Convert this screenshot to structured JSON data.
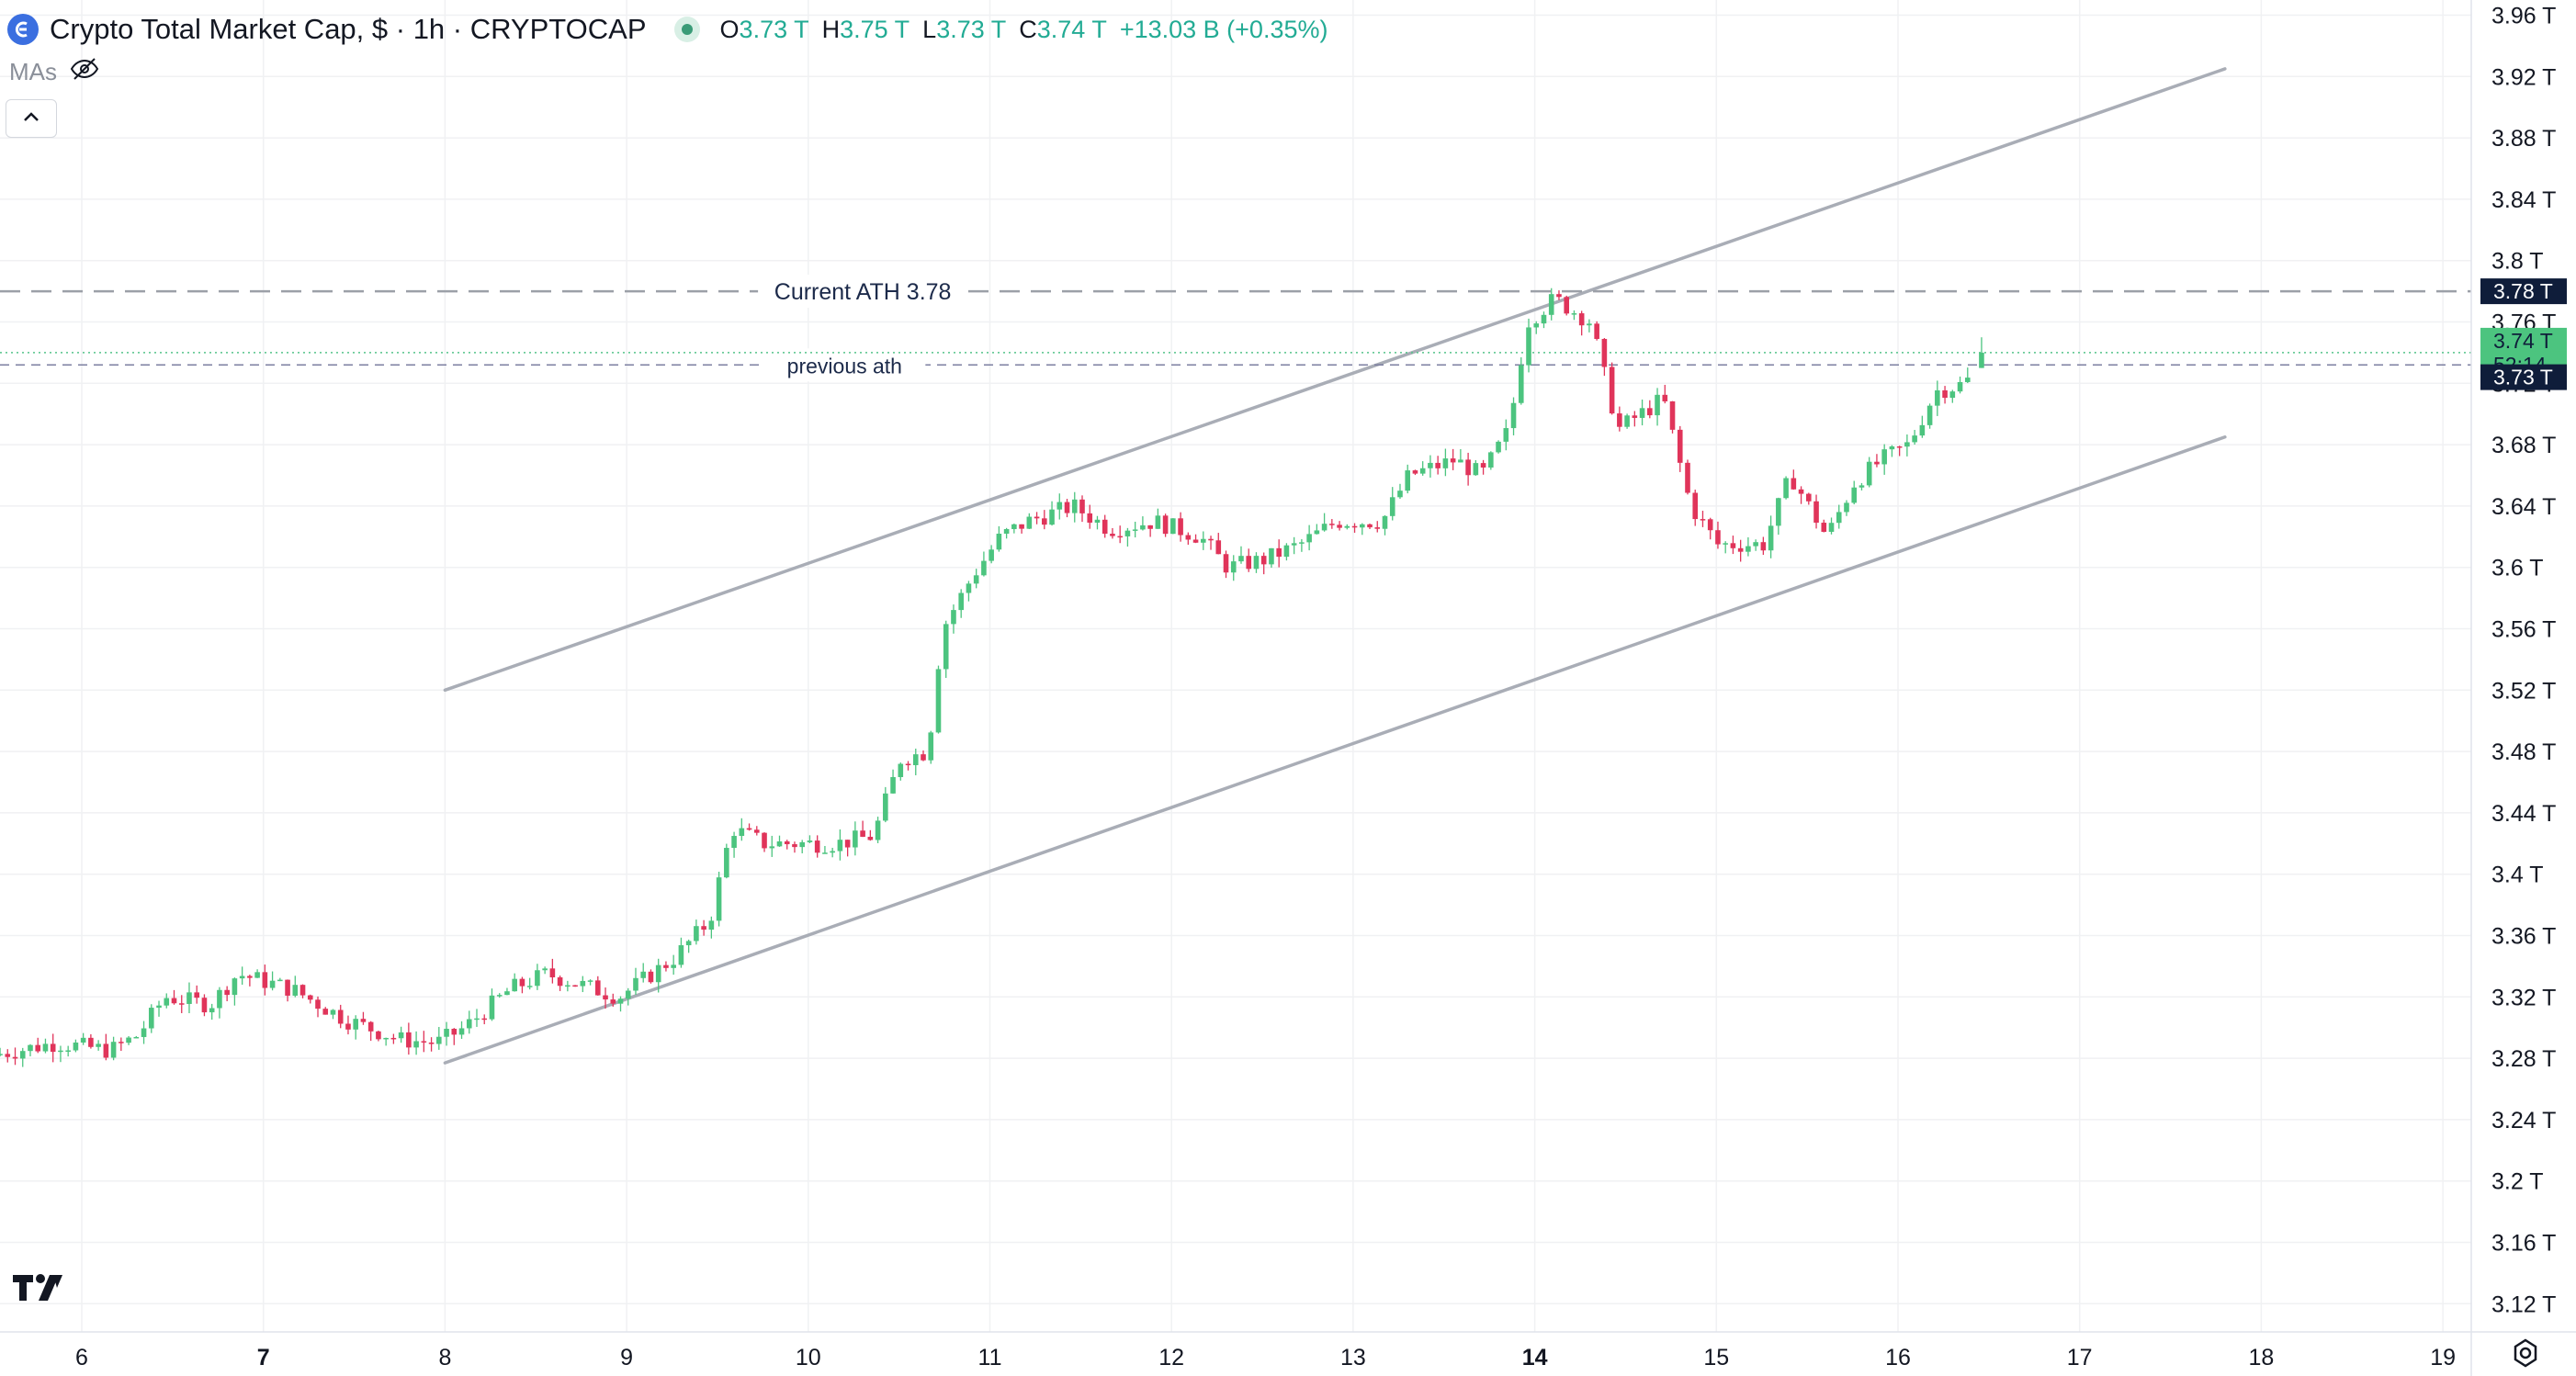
{
  "header": {
    "title": "Crypto Total Market Cap, $ · 1h · CRYPTOCAP",
    "ohlc": [
      {
        "key": "O",
        "value": "3.73 T"
      },
      {
        "key": "H",
        "value": "3.75 T"
      },
      {
        "key": "L",
        "value": "3.73 T"
      },
      {
        "key": "C",
        "value": "3.74 T"
      }
    ],
    "change": "+13.03 B (+0.35%)"
  },
  "indicators": {
    "mas_label": "MAs"
  },
  "icons": {
    "logo": "crypto-logo-icon",
    "live": "market-open-dot-icon",
    "hide": "eye-off-icon",
    "collapse": "chevron-up-icon",
    "brand": "tradingview-logo-icon",
    "settings": "gear-icon"
  },
  "colors": {
    "up": "#26a69a",
    "up_candle": "#4cc47f",
    "down": "#e0345a",
    "channel": "#a9adb6",
    "ath_line": "#9ca0a8",
    "prev_ath_line": "#7c7fa0",
    "price_tag_bg": "#4cc47f",
    "dark_tag_bg": "#0f1d3a"
  },
  "chart_data": {
    "type": "candlestick",
    "y_axis": {
      "ticks": [
        "3.96 T",
        "3.92 T",
        "3.88 T",
        "3.84 T",
        "3.8 T",
        "3.76 T",
        "3.72 T",
        "3.68 T",
        "3.64 T",
        "3.6 T",
        "3.56 T",
        "3.52 T",
        "3.48 T",
        "3.44 T",
        "3.4 T",
        "3.36 T",
        "3.32 T",
        "3.28 T",
        "3.24 T",
        "3.2 T",
        "3.16 T",
        "3.12 T"
      ],
      "tick_values": [
        3.96,
        3.92,
        3.88,
        3.84,
        3.8,
        3.76,
        3.72,
        3.68,
        3.64,
        3.6,
        3.56,
        3.52,
        3.48,
        3.44,
        3.4,
        3.36,
        3.32,
        3.28,
        3.24,
        3.2,
        3.16,
        3.12
      ],
      "range": [
        3.1,
        3.97
      ],
      "unit": "T"
    },
    "x_axis": {
      "ticks": [
        "6",
        "7",
        "8",
        "9",
        "10",
        "11",
        "12",
        "13",
        "14",
        "15",
        "16",
        "17",
        "18",
        "19"
      ],
      "tick_days": [
        6,
        7,
        8,
        9,
        10,
        11,
        12,
        13,
        14,
        15,
        16,
        17,
        18,
        19
      ],
      "bold": [
        "7",
        "14"
      ],
      "range": [
        5.55,
        19.7
      ]
    },
    "series_anchors": [
      [
        5.55,
        3.282
      ],
      [
        5.9,
        3.29
      ],
      [
        6.2,
        3.285
      ],
      [
        6.35,
        3.295
      ],
      [
        6.5,
        3.32
      ],
      [
        6.75,
        3.315
      ],
      [
        6.9,
        3.335
      ],
      [
        7.2,
        3.325
      ],
      [
        7.5,
        3.305
      ],
      [
        7.8,
        3.292
      ],
      [
        8.0,
        3.29
      ],
      [
        8.15,
        3.3
      ],
      [
        8.4,
        3.325
      ],
      [
        8.6,
        3.335
      ],
      [
        9.0,
        3.32
      ],
      [
        9.3,
        3.345
      ],
      [
        9.5,
        3.37
      ],
      [
        9.62,
        3.43
      ],
      [
        9.8,
        3.42
      ],
      [
        10.0,
        3.42
      ],
      [
        10.2,
        3.42
      ],
      [
        10.4,
        3.425
      ],
      [
        10.55,
        3.475
      ],
      [
        10.7,
        3.48
      ],
      [
        10.78,
        3.56
      ],
      [
        10.95,
        3.595
      ],
      [
        11.1,
        3.62
      ],
      [
        11.25,
        3.63
      ],
      [
        11.5,
        3.64
      ],
      [
        11.7,
        3.625
      ],
      [
        11.95,
        3.63
      ],
      [
        12.2,
        3.62
      ],
      [
        12.35,
        3.6
      ],
      [
        12.55,
        3.605
      ],
      [
        12.75,
        3.615
      ],
      [
        12.95,
        3.63
      ],
      [
        13.2,
        3.63
      ],
      [
        13.35,
        3.66
      ],
      [
        13.6,
        3.67
      ],
      [
        13.75,
        3.66
      ],
      [
        13.9,
        3.69
      ],
      [
        14.0,
        3.76
      ],
      [
        14.15,
        3.775
      ],
      [
        14.35,
        3.76
      ],
      [
        14.5,
        3.69
      ],
      [
        14.75,
        3.71
      ],
      [
        14.9,
        3.64
      ],
      [
        15.05,
        3.615
      ],
      [
        15.3,
        3.615
      ],
      [
        15.45,
        3.66
      ],
      [
        15.65,
        3.62
      ],
      [
        15.8,
        3.655
      ],
      [
        15.95,
        3.67
      ],
      [
        16.1,
        3.68
      ],
      [
        16.25,
        3.715
      ],
      [
        16.42,
        3.72
      ],
      [
        16.47,
        3.74
      ]
    ],
    "last": {
      "open": 3.73,
      "high": 3.75,
      "low": 3.73,
      "close": 3.74
    },
    "channel_upper": {
      "from": [
        8.0,
        3.52
      ],
      "to": [
        17.8,
        3.925
      ]
    },
    "channel_lower": {
      "from": [
        8.0,
        3.277
      ],
      "to": [
        17.8,
        3.685
      ]
    },
    "horizontal_levels": [
      {
        "value": 3.78,
        "style": "dashed",
        "label": "Current ATH 3.78",
        "label_day": 10.3
      },
      {
        "value": 3.732,
        "style": "dashed-fine",
        "label": "previous ath",
        "label_day": 10.2
      },
      {
        "value": 3.74,
        "style": "dotted-green",
        "label": ""
      }
    ],
    "price_tags": [
      {
        "value": 3.78,
        "text": "3.78 T",
        "kind": "dark"
      },
      {
        "value": 3.74,
        "text": "3.74 T",
        "kind": "green"
      },
      {
        "value": 3.74,
        "text": "52:14",
        "kind": "green-countdown"
      },
      {
        "value": 3.73,
        "text": "3.73 T",
        "kind": "dark"
      }
    ]
  }
}
